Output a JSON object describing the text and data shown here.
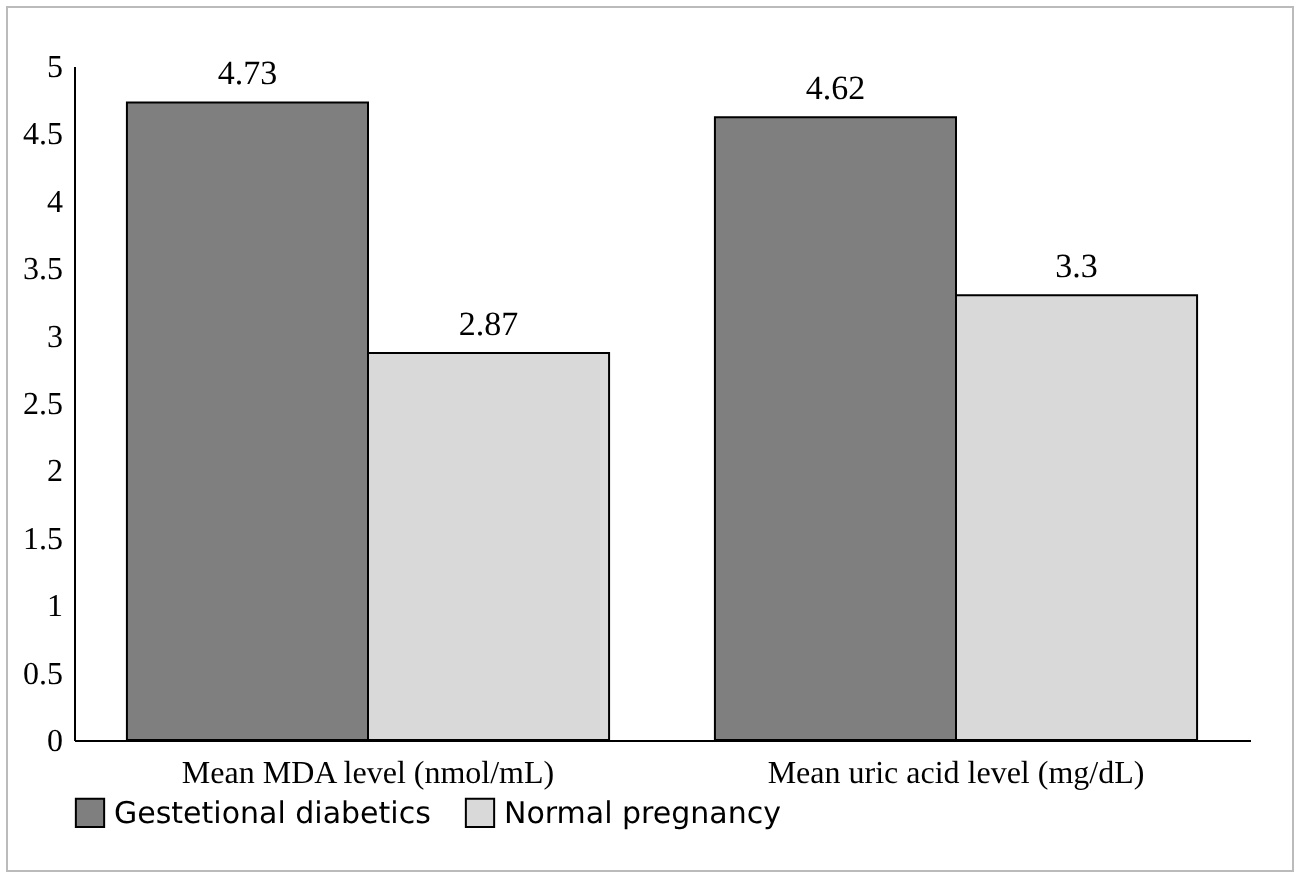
{
  "chart_data": {
    "type": "bar",
    "categories": [
      "Mean MDA level (nmol/mL)",
      "Mean uric acid level (mg/dL)"
    ],
    "series": [
      {
        "name": "Gestetional diabetics",
        "color": "#7f7f7f",
        "values": [
          4.73,
          4.62
        ]
      },
      {
        "name": "Normal pregnancy",
        "color": "#d9d9d9",
        "values": [
          2.87,
          3.3
        ]
      }
    ],
    "ylim": [
      0,
      5
    ],
    "yticks": [
      0,
      0.5,
      1,
      1.5,
      2,
      2.5,
      3,
      3.5,
      4,
      4.5,
      5
    ],
    "grid": false,
    "legend": "bottom",
    "data_labels": true
  }
}
